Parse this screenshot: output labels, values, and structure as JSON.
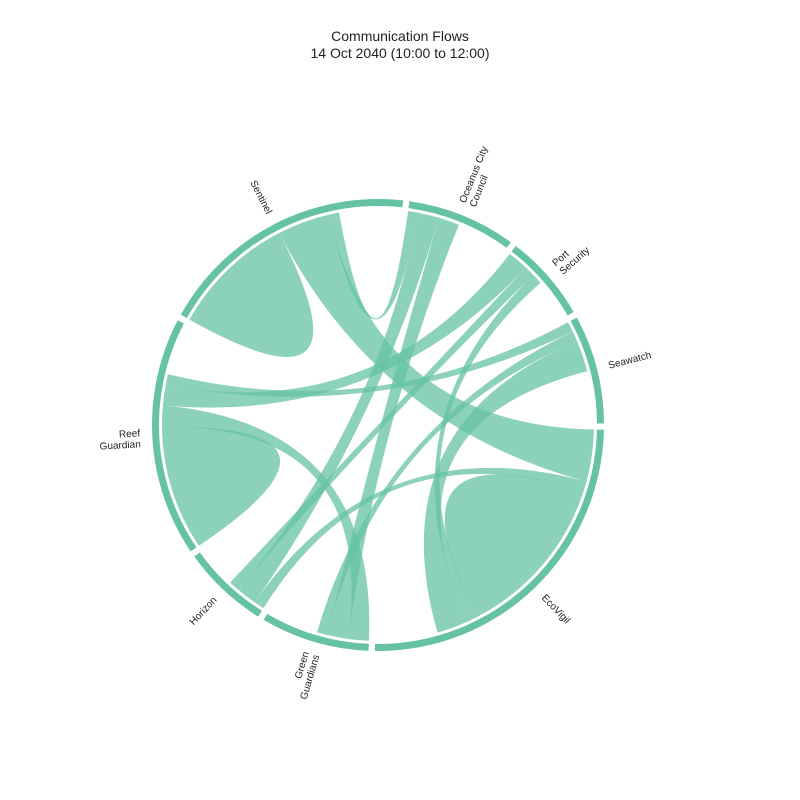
{
  "chart_data": {
    "type": "chord",
    "title": "Communication Flows",
    "subtitle": "14 Oct 2040 (10:00 to 12:00)",
    "colors": {
      "arc": "#66c2a5",
      "ribbon": "#66c2a5"
    },
    "nodes": [
      {
        "name": "Oceanus City Council",
        "lines": [
          "Oceanus City",
          "Council"
        ],
        "value": 5
      },
      {
        "name": "Port Security",
        "lines": [
          "Port",
          "Security"
        ],
        "value": 4
      },
      {
        "name": "Seawatch",
        "lines": [
          "Seawatch"
        ],
        "value": 5
      },
      {
        "name": "EcoVigil",
        "lines": [
          "EcoVigil"
        ],
        "value": 16
      },
      {
        "name": "Green Guardians",
        "lines": [
          "Green",
          "Guardians"
        ],
        "value": 5
      },
      {
        "name": "Horizon",
        "lines": [
          "Horizon"
        ],
        "value": 4
      },
      {
        "name": "Reef Guardian",
        "lines": [
          "Reef",
          "Guardian"
        ],
        "value": 11
      },
      {
        "name": "Sentinel",
        "lines": [
          "Sentinel"
        ],
        "value": 12
      }
    ],
    "links": [
      {
        "source": "Sentinel",
        "target": "Sentinel",
        "value": 6
      },
      {
        "source": "Sentinel",
        "target": "EcoVigil",
        "value": 5
      },
      {
        "source": "Sentinel",
        "target": "Oceanus City Council",
        "value": 1
      },
      {
        "source": "Reef Guardian",
        "target": "Reef Guardian",
        "value": 6
      },
      {
        "source": "Reef Guardian",
        "target": "Green Guardians",
        "value": 2
      },
      {
        "source": "Reef Guardian",
        "target": "Port Security",
        "value": 2
      },
      {
        "source": "Reef Guardian",
        "target": "Seawatch",
        "value": 1
      },
      {
        "source": "Horizon",
        "target": "EcoVigil",
        "value": 1
      },
      {
        "source": "Horizon",
        "target": "Oceanus City Council",
        "value": 2
      },
      {
        "source": "Horizon",
        "target": "Port Security",
        "value": 1
      },
      {
        "source": "Green Guardians",
        "target": "Oceanus City Council",
        "value": 2
      },
      {
        "source": "Green Guardians",
        "target": "Seawatch",
        "value": 1
      },
      {
        "source": "EcoVigil",
        "target": "EcoVigil",
        "value": 8
      },
      {
        "source": "EcoVigil",
        "target": "Port Security",
        "value": 1
      },
      {
        "source": "EcoVigil",
        "target": "Seawatch",
        "value": 3
      }
    ]
  }
}
